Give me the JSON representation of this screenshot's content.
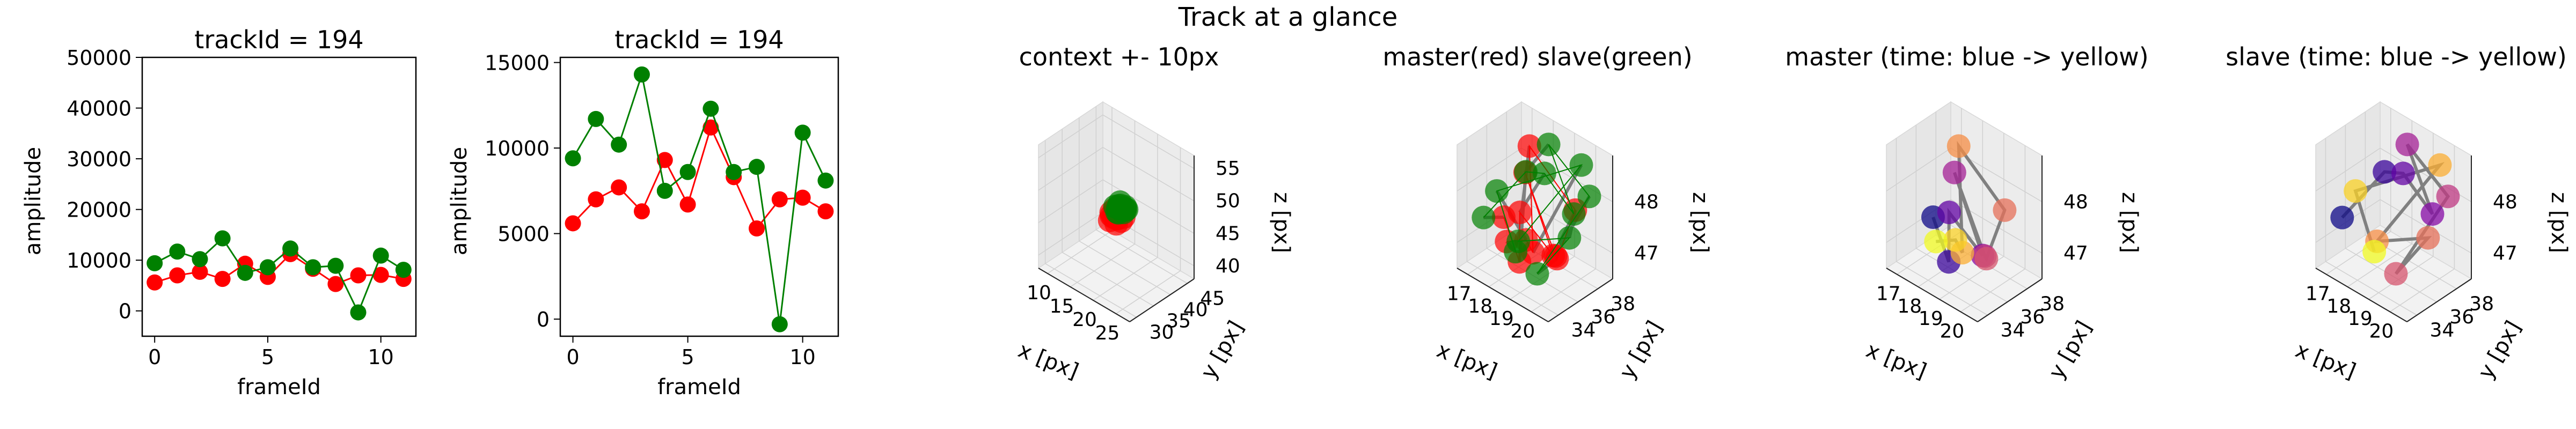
{
  "suptitle": "Track at a glance",
  "colors": {
    "master": "#ff0000",
    "slave": "#008000",
    "link": "#808080",
    "pane": "#f0f0f0",
    "grid": "#dcdcdc"
  },
  "chart_data": [
    {
      "type": "line",
      "title": "trackId = 194",
      "xlabel": "frameId",
      "ylabel": "amplitude",
      "xlim": [
        -0.55,
        11.55
      ],
      "ylim": [
        -5000,
        50000
      ],
      "xticks": [
        0,
        5,
        10
      ],
      "yticks": [
        0,
        10000,
        20000,
        30000,
        40000,
        50000
      ],
      "x": [
        0,
        1,
        2,
        3,
        4,
        5,
        6,
        7,
        8,
        9,
        10,
        11
      ],
      "series": [
        {
          "color": "#ff0000",
          "values": [
            5600,
            7000,
            7700,
            6300,
            9300,
            6700,
            11200,
            8300,
            5300,
            7000,
            7100,
            6300
          ]
        },
        {
          "color": "#008000",
          "values": [
            9400,
            11700,
            10200,
            14300,
            7500,
            8600,
            12300,
            8600,
            8900,
            -300,
            10900,
            8100
          ]
        }
      ]
    },
    {
      "type": "line",
      "title": "trackId = 194",
      "xlabel": "frameId",
      "ylabel": "amplitude",
      "xlim": [
        -0.55,
        11.55
      ],
      "ylim": [
        -1000,
        15300
      ],
      "xticks": [
        0,
        5,
        10
      ],
      "yticks": [
        0,
        5000,
        10000,
        15000
      ],
      "x": [
        0,
        1,
        2,
        3,
        4,
        5,
        6,
        7,
        8,
        9,
        10,
        11
      ],
      "series": [
        {
          "color": "#ff0000",
          "values": [
            5600,
            7000,
            7700,
            6300,
            9300,
            6700,
            11200,
            8300,
            5300,
            7000,
            7100,
            6300
          ]
        },
        {
          "color": "#008000",
          "values": [
            9400,
            11700,
            10200,
            14300,
            7500,
            8600,
            12300,
            8600,
            8900,
            -300,
            10900,
            8100
          ]
        }
      ]
    },
    {
      "type": "scatter",
      "title": "context +- 10px",
      "xlabel": "x [px]",
      "ylabel": "y [px]",
      "zlabel": "z [px]",
      "xlim": [
        8,
        28
      ],
      "ylim": [
        28,
        47
      ],
      "zlim": [
        38,
        57
      ],
      "xticks": [
        10,
        15,
        20,
        25
      ],
      "yticks": [
        30,
        35,
        40,
        45
      ],
      "zticks": [
        40,
        45,
        50,
        55
      ],
      "series": [
        {
          "name": "master",
          "color": "#ff0000",
          "points": [
            [
              17.6,
              36.1,
              46.5
            ],
            [
              18.0,
              36.6,
              47.0
            ],
            [
              18.5,
              37.0,
              46.8
            ],
            [
              19.0,
              36.4,
              47.3
            ],
            [
              18.2,
              35.8,
              47.6
            ],
            [
              19.5,
              36.9,
              46.9
            ],
            [
              18.8,
              37.5,
              47.8
            ],
            [
              17.9,
              37.2,
              48.0
            ],
            [
              19.2,
              35.9,
              46.7
            ],
            [
              18.6,
              36.3,
              48.1
            ],
            [
              17.4,
              36.8,
              47.4
            ],
            [
              19.8,
              37.3,
              47.5
            ]
          ]
        },
        {
          "name": "slave",
          "color": "#008000",
          "points": [
            [
              17.5,
              37.8,
              48.0
            ],
            [
              18.4,
              38.2,
              48.4
            ],
            [
              19.3,
              37.9,
              47.8
            ],
            [
              18.0,
              38.6,
              48.6
            ],
            [
              19.6,
              38.4,
              48.2
            ],
            [
              18.9,
              38.9,
              47.9
            ],
            [
              17.8,
              38.0,
              47.2
            ],
            [
              19.9,
              37.6,
              48.5
            ],
            [
              18.6,
              37.4,
              48.7
            ],
            [
              17.6,
              38.5,
              47.6
            ],
            [
              19.1,
              38.7,
              48.3
            ],
            [
              18.3,
              37.7,
              47.4
            ]
          ]
        }
      ]
    },
    {
      "type": "scatter",
      "title": "master(red) slave(green)",
      "xlabel": "x [px]",
      "ylabel": "y [px]",
      "zlabel": "z [px]",
      "xlim": [
        16.5,
        20.8
      ],
      "ylim": [
        33.0,
        39.5
      ],
      "zlim": [
        46.5,
        48.9
      ],
      "xticks": [
        17,
        18,
        19,
        20
      ],
      "yticks": [
        34,
        36,
        38
      ],
      "zticks": [
        47,
        48
      ],
      "series": [
        {
          "name": "master",
          "color": "#ff0000",
          "points": [
            [
              17.3,
              36.0,
              47.3
            ],
            [
              18.6,
              34.8,
              46.9
            ],
            [
              18.1,
              35.9,
              47.6
            ],
            [
              19.4,
              36.5,
              47.0
            ],
            [
              17.7,
              37.3,
              48.1
            ],
            [
              18.9,
              37.8,
              46.7
            ],
            [
              20.0,
              35.6,
              47.2
            ],
            [
              19.6,
              38.3,
              47.7
            ],
            [
              17.2,
              38.8,
              48.3
            ],
            [
              18.4,
              36.6,
              46.8
            ],
            [
              19.1,
              34.4,
              47.5
            ],
            [
              17.9,
              35.0,
              47.1
            ]
          ]
        },
        {
          "name": "slave",
          "color": "#008000",
          "points": [
            [
              17.0,
              34.6,
              47.4
            ],
            [
              17.5,
              37.8,
              48.0
            ],
            [
              18.8,
              36.9,
              48.4
            ],
            [
              19.9,
              37.5,
              47.8
            ],
            [
              18.2,
              38.6,
              48.6
            ],
            [
              20.4,
              38.0,
              48.2
            ],
            [
              19.3,
              35.1,
              46.8
            ],
            [
              20.3,
              36.2,
              47.6
            ],
            [
              17.8,
              36.4,
              46.9
            ],
            [
              19.6,
              38.9,
              48.5
            ],
            [
              17.3,
              35.3,
              47.9
            ],
            [
              18.7,
              34.2,
              47.2
            ]
          ]
        }
      ]
    },
    {
      "type": "scatter",
      "title": "master (time: blue -> yellow)",
      "xlabel": "x [px]",
      "ylabel": "y [px]",
      "zlabel": "z [px]",
      "xlim": [
        16.5,
        20.8
      ],
      "ylim": [
        33.0,
        39.5
      ],
      "zlim": [
        46.5,
        48.9
      ],
      "xticks": [
        17,
        18,
        19,
        20
      ],
      "yticks": [
        34,
        36,
        38
      ],
      "zticks": [
        47,
        48
      ],
      "series": [
        {
          "name": "master",
          "colormap": "plasma",
          "points": [
            [
              17.3,
              36.0,
              47.3
            ],
            [
              18.6,
              34.8,
              46.9
            ],
            [
              18.1,
              35.9,
              47.6
            ],
            [
              19.4,
              36.5,
              47.0
            ],
            [
              17.7,
              37.3,
              48.1
            ],
            [
              18.9,
              37.8,
              46.7
            ],
            [
              20.0,
              35.6,
              47.2
            ],
            [
              19.6,
              38.3,
              47.7
            ],
            [
              17.2,
              38.8,
              48.3
            ],
            [
              18.4,
              36.6,
              46.8
            ],
            [
              19.1,
              34.4,
              47.5
            ],
            [
              17.9,
              35.0,
              47.1
            ]
          ]
        }
      ]
    },
    {
      "type": "scatter",
      "title": "slave (time: blue -> yellow)",
      "xlabel": "x [px]",
      "ylabel": "y [px]",
      "zlabel": "z [px]",
      "xlim": [
        16.5,
        20.8
      ],
      "ylim": [
        33.0,
        39.5
      ],
      "zlim": [
        46.5,
        48.9
      ],
      "xticks": [
        17,
        18,
        19,
        20
      ],
      "yticks": [
        34,
        36,
        38
      ],
      "zticks": [
        47,
        48
      ],
      "series": [
        {
          "name": "slave",
          "colormap": "plasma",
          "points": [
            [
              17.0,
              34.6,
              47.4
            ],
            [
              17.5,
              37.8,
              48.0
            ],
            [
              18.8,
              36.9,
              48.4
            ],
            [
              19.9,
              37.5,
              47.8
            ],
            [
              18.2,
              38.6,
              48.6
            ],
            [
              20.4,
              38.0,
              48.2
            ],
            [
              19.3,
              35.1,
              46.8
            ],
            [
              20.3,
              36.2,
              47.6
            ],
            [
              17.8,
              36.4,
              46.9
            ],
            [
              19.6,
              38.9,
              48.5
            ],
            [
              17.3,
              35.3,
              47.9
            ],
            [
              18.7,
              34.2,
              47.2
            ]
          ]
        }
      ]
    }
  ]
}
